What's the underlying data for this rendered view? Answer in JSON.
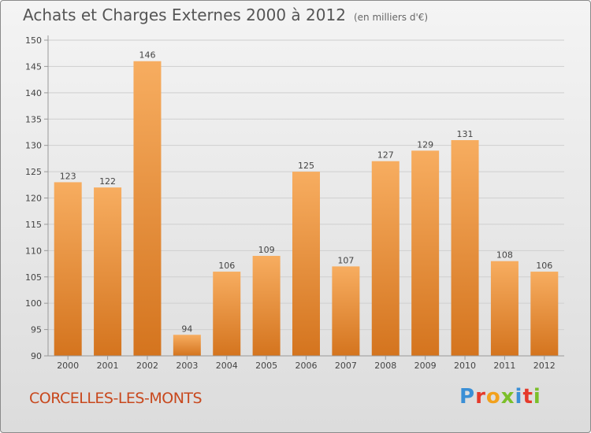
{
  "header": {
    "title": "Achats et Charges Externes 2000 à 2012",
    "subtitle": "(en milliers d'€)"
  },
  "footer": {
    "commune": "CORCELLES-LES-MONTS",
    "brand": "Proxiti",
    "brand_colors": [
      "#3a8fd6",
      "#e53a2b",
      "#f2a11d",
      "#7bbf2a",
      "#3a8fd6",
      "#e53a2b",
      "#7bbf2a"
    ]
  },
  "colors": {
    "bar_light": "#f7ad60",
    "bar_dark": "#d4741e",
    "grid": "#cfcfcf",
    "axis": "#999999",
    "text": "#444444"
  },
  "chart_data": {
    "type": "bar",
    "categories": [
      "2000",
      "2001",
      "2002",
      "2003",
      "2004",
      "2005",
      "2006",
      "2007",
      "2008",
      "2009",
      "2010",
      "2011",
      "2012"
    ],
    "values": [
      123,
      122,
      146,
      94,
      106,
      109,
      125,
      107,
      127,
      129,
      131,
      108,
      106
    ],
    "title": "Achats et Charges Externes 2000 à 2012",
    "xlabel": "",
    "ylabel": "",
    "ylim": [
      90,
      150
    ],
    "yticks": [
      90,
      95,
      100,
      105,
      110,
      115,
      120,
      125,
      130,
      135,
      140,
      145,
      150
    ],
    "grid": true
  }
}
